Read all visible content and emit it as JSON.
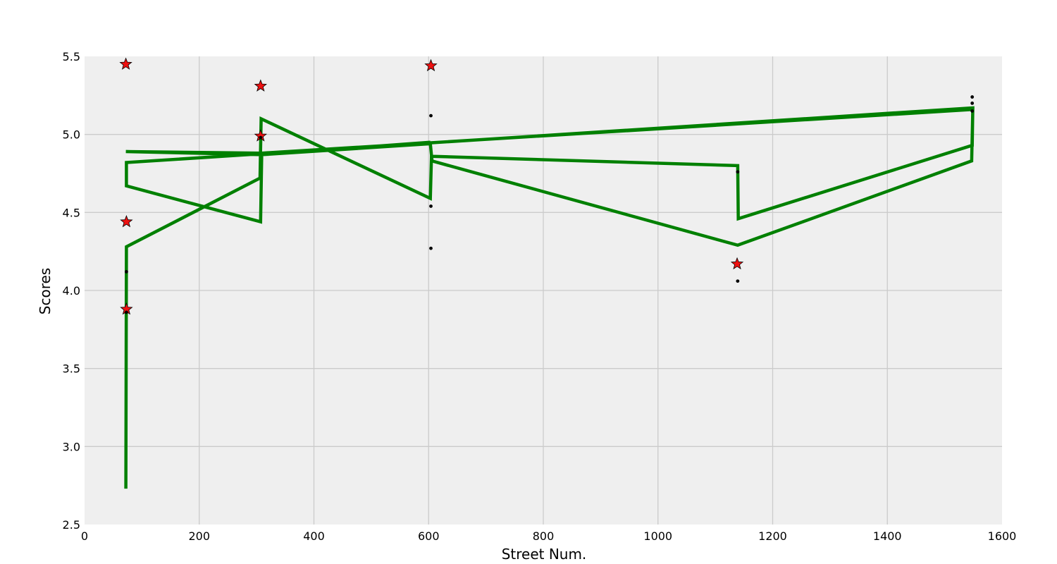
{
  "chart_data": {
    "type": "line",
    "title": "",
    "xlabel": "Street Num.",
    "ylabel": "Scores",
    "xlim": [
      0,
      1600
    ],
    "ylim": [
      2.5,
      5.5
    ],
    "xticks": [
      0,
      200,
      400,
      600,
      800,
      1000,
      1200,
      1400,
      1600
    ],
    "xtick_labels": [
      "0",
      "200",
      "400",
      "600",
      "800",
      "1000",
      "1200",
      "1400",
      "1600"
    ],
    "yticks": [
      2.5,
      3.0,
      3.5,
      4.0,
      4.5,
      5.0,
      5.5
    ],
    "ytick_labels": [
      "2.5",
      "3.0",
      "3.5",
      "4.0",
      "4.5",
      "5.0",
      "5.5"
    ],
    "grid": true,
    "style": {
      "background": "#efefef",
      "grid_color": "#cbcbcb",
      "line_color": "#008000",
      "star_color": "#ee1111",
      "dot_color": "#000000"
    },
    "series": [
      {
        "kind": "line",
        "points": [
          [
            72,
            2.73
          ],
          [
            73,
            4.28
          ],
          [
            306,
            4.72
          ],
          [
            308,
            5.1
          ],
          [
            603,
            4.59
          ],
          [
            605,
            4.86
          ],
          [
            1139,
            4.8
          ],
          [
            1140,
            4.46
          ],
          [
            1548,
            4.93
          ],
          [
            1549,
            5.17
          ],
          [
            73,
            4.82
          ],
          [
            73,
            4.67
          ],
          [
            307,
            4.44
          ],
          [
            309,
            4.87
          ],
          [
            603,
            4.94
          ],
          [
            606,
            4.83
          ],
          [
            1139,
            4.29
          ],
          [
            1547,
            4.83
          ],
          [
            1549,
            5.16
          ],
          [
            309,
            4.88
          ],
          [
            72,
            4.89
          ],
          [
            309,
            4.87
          ],
          [
            603,
            4.95
          ]
        ]
      },
      {
        "kind": "stars",
        "points": [
          [
            72,
            5.45
          ],
          [
            307,
            5.31
          ],
          [
            604,
            5.44
          ],
          [
            307,
            4.99
          ],
          [
            73,
            4.44
          ],
          [
            73,
            3.88
          ],
          [
            1138,
            4.17
          ]
        ]
      },
      {
        "kind": "dots",
        "points": [
          [
            73,
            4.12
          ],
          [
            73,
            3.86
          ],
          [
            307,
            4.98
          ],
          [
            604,
            5.12
          ],
          [
            604,
            4.54
          ],
          [
            604,
            4.27
          ],
          [
            1139,
            4.76
          ],
          [
            1139,
            4.06
          ],
          [
            1548,
            5.24
          ],
          [
            1548,
            5.2
          ],
          [
            1548,
            5.15
          ]
        ]
      }
    ]
  }
}
